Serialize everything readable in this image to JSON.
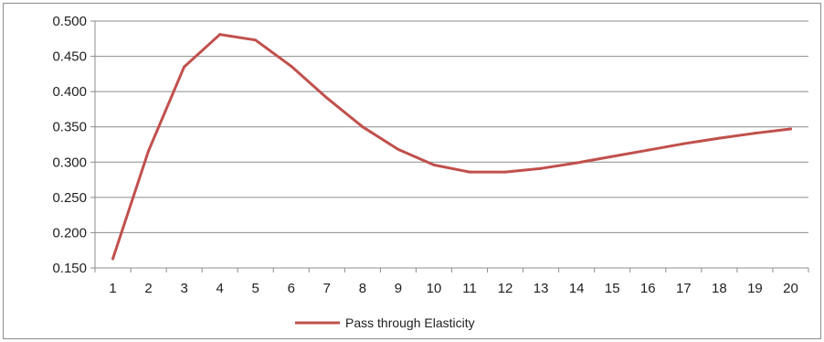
{
  "chart_data": {
    "type": "line",
    "title": "",
    "xlabel": "",
    "ylabel": "",
    "categories": [
      "1",
      "2",
      "3",
      "4",
      "5",
      "6",
      "7",
      "8",
      "9",
      "10",
      "11",
      "12",
      "13",
      "14",
      "15",
      "16",
      "17",
      "18",
      "19",
      "20"
    ],
    "series": [
      {
        "name": "Pass through Elasticity",
        "color": "#c0504d",
        "values": [
          0.163,
          0.316,
          0.435,
          0.481,
          0.473,
          0.436,
          0.391,
          0.35,
          0.318,
          0.296,
          0.286,
          0.286,
          0.291,
          0.299,
          0.308,
          0.317,
          0.326,
          0.334,
          0.341,
          0.347
        ]
      }
    ],
    "ylim": [
      0.15,
      0.5
    ],
    "yticks": [
      "0.500",
      "0.450",
      "0.400",
      "0.350",
      "0.300",
      "0.250",
      "0.200",
      "0.150"
    ],
    "grid": true,
    "legend_position": "bottom"
  }
}
